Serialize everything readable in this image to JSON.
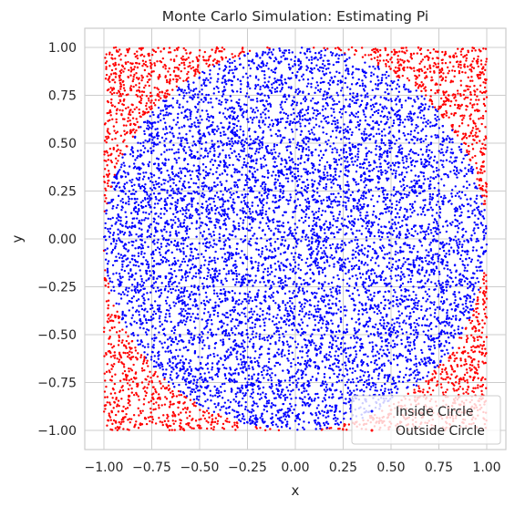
{
  "chart_data": {
    "type": "scatter",
    "title": "Monte Carlo Simulation: Estimating Pi",
    "xlabel": "x",
    "ylabel": "y",
    "xlim": [
      -1.1,
      1.1
    ],
    "ylim": [
      -1.1,
      1.1
    ],
    "xticks": [
      -1.0,
      -0.75,
      -0.5,
      -0.25,
      0.0,
      0.25,
      0.5,
      0.75,
      1.0
    ],
    "yticks": [
      -1.0,
      -0.75,
      -0.5,
      -0.25,
      0.0,
      0.25,
      0.5,
      0.75,
      1.0
    ],
    "xtick_labels": [
      "−1.00",
      "−0.75",
      "−0.50",
      "−0.25",
      "0.00",
      "0.25",
      "0.50",
      "0.75",
      "1.00"
    ],
    "ytick_labels": [
      "−1.00",
      "−0.75",
      "−0.50",
      "−0.25",
      "0.00",
      "0.25",
      "0.50",
      "0.75",
      "1.00"
    ],
    "grid": true,
    "legend_position": "lower-right",
    "series": [
      {
        "name": "Inside Circle",
        "color": "#0000ff",
        "condition": "x^2 + y^2 <= 1",
        "points": [
          [
            0.0,
            0.0
          ],
          [
            0.5,
            0.5
          ],
          [
            -0.5,
            0.5
          ],
          [
            0.5,
            -0.5
          ],
          [
            -0.5,
            -0.5
          ],
          [
            0.25,
            0.75
          ],
          [
            -0.25,
            -0.75
          ],
          [
            0.75,
            0.25
          ],
          [
            -0.75,
            -0.25
          ],
          [
            0.0,
            0.95
          ],
          [
            0.0,
            -0.95
          ],
          [
            0.95,
            0.0
          ],
          [
            -0.95,
            0.0
          ]
        ]
      },
      {
        "name": "Outside Circle",
        "color": "#ff0000",
        "condition": "x^2 + y^2 > 1",
        "points": [
          [
            0.9,
            0.9
          ],
          [
            -0.9,
            0.9
          ],
          [
            0.9,
            -0.9
          ],
          [
            -0.9,
            -0.9
          ],
          [
            0.8,
            0.75
          ],
          [
            -0.8,
            0.75
          ],
          [
            0.8,
            -0.75
          ],
          [
            -0.8,
            -0.75
          ],
          [
            0.98,
            0.4
          ],
          [
            -0.98,
            -0.4
          ],
          [
            0.45,
            -0.95
          ],
          [
            -0.45,
            0.95
          ]
        ]
      }
    ]
  }
}
